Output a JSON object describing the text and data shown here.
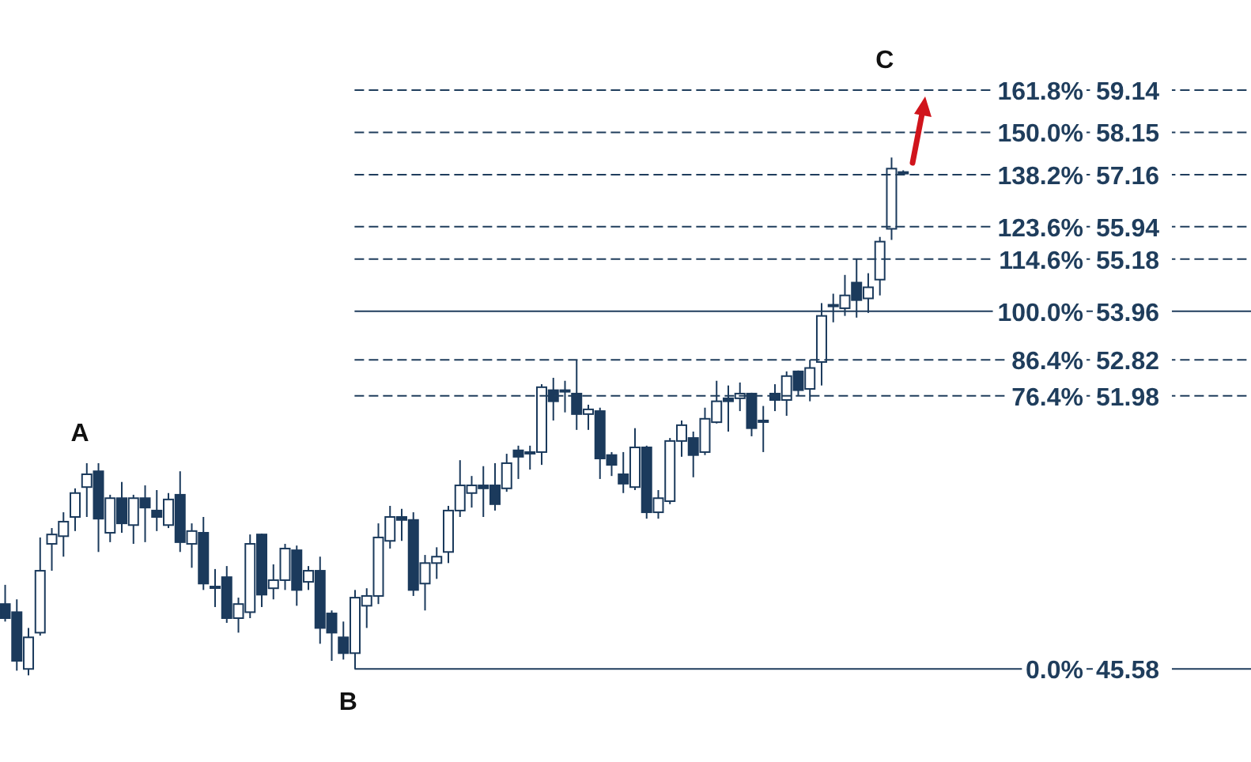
{
  "chart_data": {
    "type": "candlestick",
    "categories": [
      null,
      null,
      null,
      null,
      null,
      null,
      null,
      null,
      null,
      null,
      null,
      null,
      null,
      null,
      null,
      null,
      null,
      null,
      null,
      null,
      null,
      null,
      null,
      null,
      null,
      null,
      null,
      null,
      null,
      null,
      null,
      null,
      null,
      null,
      null,
      null,
      null,
      null,
      null,
      null,
      null,
      null,
      null,
      null,
      null,
      null,
      null,
      null,
      null,
      null,
      null,
      null,
      null,
      null,
      null,
      null,
      null,
      null,
      null,
      null,
      null,
      null,
      null,
      null,
      null,
      null,
      null,
      null,
      null,
      null,
      null,
      null,
      null,
      null,
      null,
      null,
      null,
      null
    ],
    "ohlc": [
      [
        47.1,
        47.55,
        46.69,
        46.77
      ],
      [
        46.91,
        47.21,
        45.54,
        45.77
      ],
      [
        45.58,
        46.54,
        45.43,
        46.32
      ],
      [
        46.43,
        48.66,
        46.36,
        47.88
      ],
      [
        48.51,
        48.88,
        47.88,
        48.73
      ],
      [
        48.69,
        49.25,
        48.21,
        49.03
      ],
      [
        49.14,
        49.81,
        48.81,
        49.7
      ],
      [
        49.84,
        50.4,
        49.14,
        50.14
      ],
      [
        50.21,
        50.4,
        48.32,
        49.1
      ],
      [
        48.77,
        49.66,
        48.55,
        49.58
      ],
      [
        49.58,
        49.96,
        48.77,
        48.99
      ],
      [
        48.95,
        49.66,
        48.51,
        49.58
      ],
      [
        49.58,
        49.88,
        48.55,
        49.36
      ],
      [
        49.29,
        49.77,
        48.81,
        49.14
      ],
      [
        48.95,
        49.7,
        48.88,
        49.55
      ],
      [
        49.66,
        50.21,
        48.32,
        48.55
      ],
      [
        48.51,
        48.99,
        47.95,
        48.81
      ],
      [
        48.77,
        49.14,
        47.43,
        47.58
      ],
      [
        47.51,
        47.92,
        47.03,
        47.49
      ],
      [
        47.73,
        47.99,
        46.66,
        46.77
      ],
      [
        46.77,
        47.25,
        46.43,
        47.1
      ],
      [
        46.91,
        48.73,
        46.77,
        48.51
      ],
      [
        48.73,
        48.75,
        47.03,
        47.32
      ],
      [
        47.47,
        48.03,
        47.21,
        47.66
      ],
      [
        47.66,
        48.51,
        47.43,
        48.4
      ],
      [
        48.36,
        48.47,
        47.06,
        47.43
      ],
      [
        47.62,
        47.99,
        47.43,
        47.88
      ],
      [
        47.88,
        48.21,
        46.17,
        46.54
      ],
      [
        46.88,
        46.95,
        45.77,
        46.43
      ],
      [
        46.32,
        46.69,
        45.8,
        45.95
      ],
      [
        45.95,
        47.43,
        45.58,
        47.25
      ],
      [
        47.06,
        47.47,
        46.54,
        47.29
      ],
      [
        47.29,
        48.99,
        47.1,
        48.66
      ],
      [
        48.58,
        49.4,
        48.4,
        49.14
      ],
      [
        49.14,
        49.33,
        48.58,
        49.07
      ],
      [
        49.07,
        49.25,
        47.29,
        47.43
      ],
      [
        47.58,
        48.25,
        46.95,
        48.06
      ],
      [
        48.06,
        48.43,
        47.69,
        48.21
      ],
      [
        48.32,
        49.4,
        48.06,
        49.29
      ],
      [
        49.29,
        50.47,
        49.14,
        49.88
      ],
      [
        49.7,
        50.1,
        49.36,
        49.88
      ],
      [
        49.88,
        50.33,
        49.14,
        49.81
      ],
      [
        49.88,
        50.4,
        49.29,
        49.44
      ],
      [
        49.81,
        50.62,
        49.73,
        50.4
      ],
      [
        50.7,
        50.81,
        50.03,
        50.55
      ],
      [
        50.66,
        50.81,
        50.25,
        50.64
      ],
      [
        50.66,
        52.25,
        50.36,
        52.18
      ],
      [
        52.11,
        52.4,
        51.4,
        51.85
      ],
      [
        52.11,
        52.33,
        51.59,
        52.09
      ],
      [
        52.03,
        52.82,
        51.18,
        51.55
      ],
      [
        51.55,
        51.77,
        51.18,
        51.66
      ],
      [
        51.62,
        51.7,
        50.03,
        50.51
      ],
      [
        50.59,
        50.66,
        50.1,
        50.36
      ],
      [
        50.14,
        50.66,
        49.7,
        49.92
      ],
      [
        49.84,
        51.22,
        49.77,
        50.77
      ],
      [
        50.77,
        50.81,
        49.1,
        49.25
      ],
      [
        49.25,
        49.77,
        49.1,
        49.58
      ],
      [
        49.51,
        50.99,
        49.44,
        50.92
      ],
      [
        50.92,
        51.4,
        50.55,
        51.29
      ],
      [
        50.99,
        51.14,
        50.07,
        50.59
      ],
      [
        50.66,
        51.7,
        50.59,
        51.44
      ],
      [
        51.36,
        52.33,
        51.33,
        51.85
      ],
      [
        51.92,
        52.22,
        51.14,
        51.85
      ],
      [
        51.92,
        52.29,
        51.62,
        52.03
      ],
      [
        52.03,
        52.05,
        51.03,
        51.22
      ],
      [
        51.4,
        51.74,
        50.66,
        51.38
      ],
      [
        52.03,
        52.25,
        51.62,
        51.88
      ],
      [
        51.88,
        52.55,
        51.51,
        52.44
      ],
      [
        52.55,
        52.57,
        51.99,
        52.11
      ],
      [
        52.14,
        52.82,
        51.85,
        52.63
      ],
      [
        52.77,
        54.15,
        52.22,
        53.85
      ],
      [
        54.11,
        54.37,
        53.7,
        54.09
      ],
      [
        54.03,
        54.81,
        53.85,
        54.33
      ],
      [
        54.63,
        55.18,
        53.81,
        54.22
      ],
      [
        54.26,
        54.85,
        53.92,
        54.52
      ],
      [
        54.7,
        55.7,
        54.33,
        55.59
      ],
      [
        55.89,
        57.56,
        55.63,
        57.3
      ],
      [
        57.22,
        57.26,
        57.15,
        57.2
      ]
    ],
    "colors": [
      "#1b3a5c",
      "#1b3a5c",
      "#ffffff",
      "#ffffff",
      "#ffffff",
      "#ffffff",
      "#ffffff",
      "#ffffff",
      "#1b3a5c",
      "#ffffff",
      "#1b3a5c",
      "#ffffff",
      "#1b3a5c",
      "#1b3a5c",
      "#ffffff",
      "#1b3a5c",
      "#ffffff",
      "#1b3a5c",
      "#1b3a5c",
      "#1b3a5c",
      "#ffffff",
      "#ffffff",
      "#1b3a5c",
      "#ffffff",
      "#ffffff",
      "#1b3a5c",
      "#ffffff",
      "#1b3a5c",
      "#1b3a5c",
      "#1b3a5c",
      "#ffffff",
      "#ffffff",
      "#ffffff",
      "#ffffff",
      "#1b3a5c",
      "#1b3a5c",
      "#ffffff",
      "#ffffff",
      "#ffffff",
      "#ffffff",
      "#ffffff",
      "#1b3a5c",
      "#1b3a5c",
      "#ffffff",
      "#1b3a5c",
      "#1b3a5c",
      "#ffffff",
      "#1b3a5c",
      "#1b3a5c",
      "#1b3a5c",
      "#ffffff",
      "#1b3a5c",
      "#1b3a5c",
      "#1b3a5c",
      "#ffffff",
      "#1b3a5c",
      "#ffffff",
      "#ffffff",
      "#ffffff",
      "#1b3a5c",
      "#ffffff",
      "#ffffff",
      "#1b3a5c",
      "#ffffff",
      "#1b3a5c",
      "#1b3a5c",
      "#1b3a5c",
      "#ffffff",
      "#1b3a5c",
      "#ffffff",
      "#ffffff",
      "#1b3a5c",
      "#ffffff",
      "#1b3a5c",
      "#ffffff",
      "#ffffff",
      "#ffffff",
      "#1b3a5c"
    ],
    "ylim": [
      43.4,
      61.25
    ],
    "tick_labels": false,
    "ref_lines": [
      {
        "axis": "y",
        "value": 59.14,
        "label": "161.8% 59.14",
        "line_style": "dashed",
        "color": "#1f3d5c"
      },
      {
        "axis": "y",
        "value": 58.15,
        "label": "150.0% 58.15",
        "line_style": "dashed",
        "color": "#1f3d5c"
      },
      {
        "axis": "y",
        "value": 57.16,
        "label": "138.2% 57.16",
        "line_style": "dashed",
        "color": "#1f3d5c"
      },
      {
        "axis": "y",
        "value": 55.94,
        "label": "123.6% 55.94",
        "line_style": "dashed",
        "color": "#1f3d5c"
      },
      {
        "axis": "y",
        "value": 55.18,
        "label": "114.6% 55.18",
        "line_style": "dashed",
        "color": "#1f3d5c"
      },
      {
        "axis": "y",
        "value": 53.96,
        "label": "100.0% 53.96",
        "line_style": "solid",
        "color": "#1f3d5c"
      },
      {
        "axis": "y",
        "value": 52.82,
        "label": "86.4% 52.82",
        "line_style": "dashed",
        "color": "#1f3d5c"
      },
      {
        "axis": "y",
        "value": 51.98,
        "label": "76.4% 51.98",
        "line_style": "dashed",
        "color": "#1f3d5c"
      },
      {
        "axis": "y",
        "value": 45.58,
        "label": "0.0% 45.58",
        "line_style": "solid",
        "color": "#1f3d5c"
      }
    ],
    "annotations": [
      {
        "text": "A",
        "y": 50.4
      },
      {
        "text": "B",
        "y": 45.58
      },
      {
        "text": "C",
        "y": 59.14
      }
    ]
  }
}
